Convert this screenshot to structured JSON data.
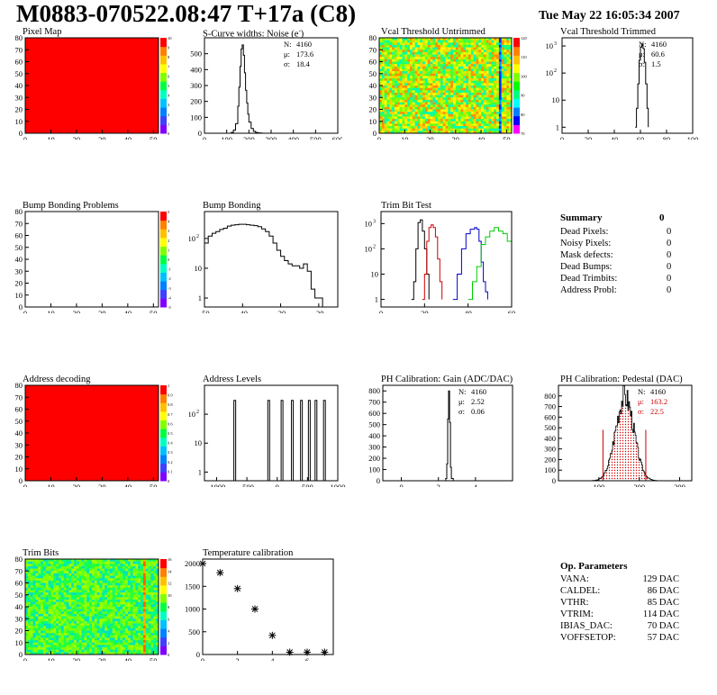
{
  "header": {
    "title": "M0883-070522.08:47 T+17a (C8)",
    "date": "Tue May 22 16:05:34 2007"
  },
  "colors": {
    "map_red": "#ff0000",
    "trim_red": "#cc0000",
    "trim_green": "#00cc00",
    "trim_blue": "#0000cc",
    "pedestal_red": "#cc0000"
  },
  "panels": {
    "pixel_map": {
      "title": "Pixel Map"
    },
    "scurve": {
      "title": "S-Curve widths: Noise (e<sup>-</sup>)",
      "title_text": "S-Curve widths: Noise (e⁻)"
    },
    "vcal_untrimmed": {
      "title": "Vcal Threshold Untrimmed"
    },
    "vcal_trimmed": {
      "title": "Vcal Threshold Trimmed"
    },
    "bump_problems": {
      "title": "Bump Bonding Problems"
    },
    "bump_bonding": {
      "title": "Bump Bonding"
    },
    "trim_bit_test": {
      "title": "Trim Bit Test"
    },
    "address_decoding": {
      "title": "Address decoding"
    },
    "address_levels": {
      "title": "Address Levels"
    },
    "ph_gain": {
      "title": "PH Calibration: Gain (ADC/DAC)"
    },
    "ph_pedestal": {
      "title": "PH Calibration: Pedestal (DAC)"
    },
    "trim_bits": {
      "title": "Trim Bits"
    },
    "temperature": {
      "title": "Temperature calibration"
    }
  },
  "summary": {
    "title": "Summary",
    "value": "0",
    "rows": [
      {
        "label": "Dead Pixels:",
        "value": "0"
      },
      {
        "label": "Noisy Pixels:",
        "value": "0"
      },
      {
        "label": "Mask defects:",
        "value": "0"
      },
      {
        "label": "Dead Bumps:",
        "value": "0"
      },
      {
        "label": "Dead Trimbits:",
        "value": "0"
      },
      {
        "label": "Address Probl:",
        "value": "0"
      }
    ]
  },
  "op_params": {
    "title": "Op. Parameters",
    "rows": [
      {
        "label": "VANA:",
        "value": "129 DAC"
      },
      {
        "label": "CALDEL:",
        "value": "86 DAC"
      },
      {
        "label": "VTHR:",
        "value": "85 DAC"
      },
      {
        "label": "VTRIM:",
        "value": "114 DAC"
      },
      {
        "label": "IBIAS_DAC:",
        "value": "70 DAC"
      },
      {
        "label": "VOFFSETOP:",
        "value": "57 DAC"
      }
    ]
  },
  "chart_data": [
    {
      "id": "pixel_map",
      "type": "heatmap",
      "title": "Pixel Map",
      "xlim": [
        0,
        52
      ],
      "ylim": [
        0,
        80
      ],
      "xticks": [
        0,
        10,
        20,
        30,
        40,
        50
      ],
      "yticks": [
        0,
        10,
        20,
        30,
        40,
        50,
        60,
        70,
        80
      ],
      "fill": "uniform-max",
      "zticks": [
        "0",
        "1",
        "2",
        "3",
        "4",
        "5",
        "6",
        "7",
        "8",
        "9",
        "10"
      ]
    },
    {
      "id": "scurve",
      "type": "line",
      "title": "S-Curve widths: Noise (e⁻)",
      "xlim": [
        0,
        600
      ],
      "ylim": [
        0,
        600
      ],
      "xticks": [
        0,
        100,
        200,
        300,
        400,
        500,
        600
      ],
      "yticks": [
        0,
        100,
        200,
        300,
        400,
        500
      ],
      "stats": [
        {
          "label": "N:",
          "value": "4160"
        },
        {
          "label": "μ:",
          "value": "173.6"
        },
        {
          "label": "σ:",
          "value": "18.4"
        }
      ],
      "x": [
        110,
        120,
        130,
        140,
        150,
        155,
        160,
        165,
        170,
        175,
        180,
        185,
        190,
        195,
        200,
        210,
        220,
        230,
        240,
        250,
        260
      ],
      "y": [
        0,
        5,
        20,
        60,
        170,
        290,
        420,
        530,
        555,
        490,
        380,
        270,
        190,
        120,
        70,
        30,
        12,
        5,
        2,
        1,
        0
      ]
    },
    {
      "id": "vcal_untrimmed",
      "type": "heatmap",
      "title": "Vcal Threshold Untrimmed",
      "xlim": [
        0,
        52
      ],
      "ylim": [
        0,
        80
      ],
      "xticks": [
        0,
        10,
        20,
        30,
        40,
        50
      ],
      "yticks": [
        0,
        10,
        20,
        30,
        40,
        50,
        60,
        70,
        80
      ],
      "zticks": [
        "70",
        "80",
        "90",
        "100",
        "110",
        "120"
      ],
      "fill": "noise-mid",
      "stripe_col": 47
    },
    {
      "id": "vcal_trimmed",
      "type": "line",
      "title": "Vcal Threshold Trimmed",
      "log_y": true,
      "xlim": [
        0,
        100
      ],
      "ylim": [
        0.6,
        2000
      ],
      "xticks": [
        0,
        20,
        40,
        60,
        80,
        100
      ],
      "yticks": [
        1,
        10,
        100,
        1000
      ],
      "stats": [
        {
          "label": "N:",
          "value": "4160"
        },
        {
          "label": "μ:",
          "value": "60.6"
        },
        {
          "label": "σ:",
          "value": "1.5"
        }
      ],
      "x": [
        56,
        57,
        58,
        59,
        60,
        61,
        62,
        63,
        64,
        65,
        66
      ],
      "y": [
        1,
        5,
        40,
        300,
        900,
        1200,
        800,
        250,
        40,
        5,
        1
      ]
    },
    {
      "id": "bump_problems",
      "type": "heatmap",
      "title": "Bump Bonding Problems",
      "xlim": [
        0,
        52
      ],
      "ylim": [
        0,
        80
      ],
      "xticks": [
        0,
        10,
        20,
        30,
        40,
        50
      ],
      "yticks": [
        0,
        10,
        20,
        30,
        40,
        50,
        60,
        70,
        80
      ],
      "zticks": [
        "-5",
        "-4",
        "-3",
        "-2",
        "-1",
        "0",
        "1",
        "2",
        "3",
        "4",
        "5"
      ],
      "fill": "empty"
    },
    {
      "id": "bump_bonding",
      "type": "line",
      "title": "Bump Bonding",
      "log_y": true,
      "xlim": [
        -50,
        -15
      ],
      "ylim": [
        0.5,
        800
      ],
      "xticks": [
        -50,
        -40,
        -30,
        -20
      ],
      "yticks": [
        1,
        10,
        100
      ],
      "x": [
        -50,
        -49,
        -48,
        -47,
        -46,
        -45,
        -44,
        -43,
        -42,
        -41,
        -40,
        -39,
        -38,
        -37,
        -36,
        -35,
        -34,
        -33,
        -32,
        -31,
        -30,
        -29,
        -28,
        -27,
        -26,
        -25,
        -24,
        -23,
        -22,
        -21,
        -20,
        -19
      ],
      "y": [
        70,
        120,
        150,
        170,
        200,
        220,
        260,
        280,
        290,
        300,
        300,
        290,
        280,
        270,
        250,
        210,
        170,
        120,
        70,
        40,
        25,
        18,
        14,
        12,
        12,
        10,
        14,
        8,
        2,
        1,
        1,
        0.5
      ]
    },
    {
      "id": "trim_bit_test",
      "type": "line",
      "title": "Trim Bit Test",
      "log_y": true,
      "xlim": [
        0,
        60
      ],
      "ylim": [
        0.5,
        3000
      ],
      "xticks": [
        0,
        20,
        40,
        60
      ],
      "yticks": [
        1,
        10,
        100,
        1000
      ],
      "series": [
        {
          "color": "#000000",
          "x": [
            14,
            15,
            16,
            17,
            18,
            19,
            20,
            21,
            22
          ],
          "y": [
            1,
            5,
            100,
            1100,
            1400,
            500,
            100,
            10,
            1
          ]
        },
        {
          "color": "#cc0000",
          "x": [
            19,
            20,
            21,
            22,
            23,
            24,
            25,
            26,
            27,
            28
          ],
          "y": [
            1,
            10,
            200,
            700,
            900,
            700,
            300,
            40,
            5,
            1
          ]
        },
        {
          "color": "#0000cc",
          "x": [
            33,
            35,
            37,
            39,
            41,
            43,
            44,
            45,
            46,
            47,
            48,
            49
          ],
          "y": [
            1,
            10,
            100,
            400,
            600,
            700,
            600,
            200,
            30,
            5,
            2,
            1
          ]
        },
        {
          "color": "#00cc00",
          "x": [
            40,
            42,
            44,
            46,
            48,
            50,
            52,
            54,
            56,
            58,
            60
          ],
          "y": [
            1,
            5,
            20,
            150,
            300,
            500,
            700,
            500,
            400,
            200,
            1
          ]
        }
      ]
    },
    {
      "id": "address_decoding",
      "type": "heatmap",
      "title": "Address decoding",
      "xlim": [
        0,
        52
      ],
      "ylim": [
        0,
        80
      ],
      "xticks": [
        0,
        10,
        20,
        30,
        40,
        50
      ],
      "yticks": [
        0,
        10,
        20,
        30,
        40,
        50,
        60,
        70,
        80
      ],
      "zticks": [
        "0",
        "0.1",
        "0.2",
        "0.3",
        "0.4",
        "0.5",
        "0.6",
        "0.7",
        "0.8",
        "0.9",
        "1"
      ],
      "fill": "uniform-max"
    },
    {
      "id": "address_levels",
      "type": "line",
      "title": "Address Levels",
      "log_y": true,
      "xlim": [
        -1200,
        1000
      ],
      "ylim": [
        0.5,
        1000
      ],
      "xticks": [
        -1000,
        -500,
        0,
        500,
        1000
      ],
      "yticks": [
        1,
        10,
        100
      ],
      "peaks": [
        -700,
        -140,
        80,
        250,
        400,
        530,
        640,
        780
      ]
    },
    {
      "id": "ph_gain",
      "type": "line",
      "title": "PH Calibration: Gain (ADC/DAC)",
      "xlim": [
        -1,
        6
      ],
      "ylim": [
        0,
        850
      ],
      "xticks": [
        0,
        2,
        4
      ],
      "yticks": [
        0,
        100,
        200,
        300,
        400,
        500,
        600,
        700,
        800
      ],
      "stats": [
        {
          "label": "N:",
          "value": "4160"
        },
        {
          "label": "μ:",
          "value": "2.52"
        },
        {
          "label": "σ:",
          "value": "0.06"
        }
      ],
      "x": [
        2.3,
        2.4,
        2.45,
        2.5,
        2.55,
        2.6,
        2.65,
        2.7,
        2.8
      ],
      "y": [
        0,
        20,
        150,
        550,
        800,
        520,
        120,
        20,
        0
      ]
    },
    {
      "id": "ph_pedestal",
      "type": "line",
      "title": "PH Calibration: Pedestal (DAC)",
      "xlim": [
        0,
        330
      ],
      "ylim": [
        0,
        900
      ],
      "xticks": [
        100,
        200,
        300
      ],
      "yticks": [
        0,
        100,
        200,
        300,
        400,
        500,
        600,
        700,
        800
      ],
      "stats": [
        {
          "label": "N:",
          "value": "4160"
        },
        {
          "label": "μ:",
          "value": "163.2",
          "color": "#cc0000"
        },
        {
          "label": "σ:",
          "value": "22.5",
          "color": "#cc0000"
        }
      ],
      "mu": 163.2,
      "sigma": 22.5
    },
    {
      "id": "trim_bits",
      "type": "heatmap",
      "title": "Trim Bits",
      "xlim": [
        0,
        52
      ],
      "ylim": [
        0,
        80
      ],
      "xticks": [
        0,
        10,
        20,
        30,
        40,
        50
      ],
      "yticks": [
        0,
        10,
        20,
        30,
        40,
        50,
        60,
        70,
        80
      ],
      "zticks": [
        "0",
        "2",
        "4",
        "6",
        "8",
        "10",
        "12",
        "14",
        "16"
      ],
      "fill": "noise-low",
      "stripe_col": 46
    },
    {
      "id": "temperature",
      "type": "scatter",
      "title": "Temperature calibration",
      "xlim": [
        0,
        7.5
      ],
      "ylim": [
        0,
        2100
      ],
      "xticks": [
        0,
        2,
        4,
        6
      ],
      "yticks": [
        0,
        500,
        1000,
        1500,
        2000
      ],
      "x": [
        0,
        1,
        2,
        3,
        4,
        5,
        6,
        7
      ],
      "y": [
        2000,
        1800,
        1450,
        1000,
        420,
        50,
        50,
        50
      ]
    }
  ]
}
